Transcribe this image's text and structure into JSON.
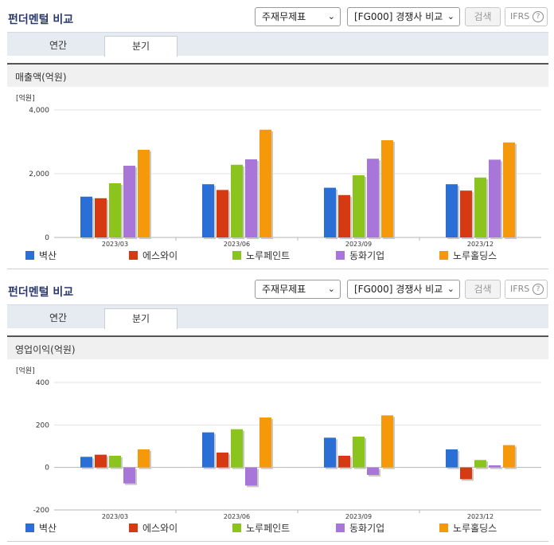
{
  "sections": [
    {
      "title": "펀더멘털 비교",
      "statement_select": "주재무제표",
      "compare_select": "[FG000] 경쟁사 비교",
      "search_label": "검색",
      "ifrs_label": "IFRS",
      "help_label": "?",
      "tabs": [
        {
          "label": "연간"
        },
        {
          "label": "분기"
        }
      ],
      "active_tab": "분기",
      "chart_header": "매출액(억원)"
    },
    {
      "title": "펀더멘털 비교",
      "statement_select": "주재무제표",
      "compare_select": "[FG000] 경쟁사 비교",
      "search_label": "검색",
      "ifrs_label": "IFRS",
      "help_label": "?",
      "tabs": [
        {
          "label": "연간"
        },
        {
          "label": "분기"
        }
      ],
      "active_tab": "분기",
      "chart_header": "영업이익(억원)"
    }
  ],
  "colors": {
    "title": "#2b3a6b",
    "tab_bar": "#e6ebf2",
    "header_bg": "#f0f0f0"
  },
  "chart_data": [
    {
      "type": "bar",
      "unit_label": "[억원]",
      "categories": [
        "2023/03",
        "2023/06",
        "2023/09",
        "2023/12"
      ],
      "ylim": [
        0,
        4000
      ],
      "yticks": [
        0,
        2000,
        4000
      ],
      "ytick_labels": [
        "0",
        "2,000",
        "4,000"
      ],
      "grid": true,
      "legend_position": "bottom",
      "series": [
        {
          "name": "벽산",
          "color": "#2b6fd6",
          "values": [
            1280,
            1670,
            1560,
            1670
          ]
        },
        {
          "name": "에스와이",
          "color": "#d63a12",
          "values": [
            1230,
            1490,
            1330,
            1470
          ]
        },
        {
          "name": "노루페인트",
          "color": "#8cc41e",
          "values": [
            1700,
            2280,
            1950,
            1880
          ]
        },
        {
          "name": "동화기업",
          "color": "#a875d8",
          "values": [
            2250,
            2450,
            2470,
            2440
          ]
        },
        {
          "name": "노루홀딩스",
          "color": "#f5980a",
          "values": [
            2750,
            3380,
            3050,
            2980
          ]
        }
      ]
    },
    {
      "type": "bar",
      "unit_label": "[억원]",
      "categories": [
        "2023/03",
        "2023/06",
        "2023/09",
        "2023/12"
      ],
      "ylim": [
        -200,
        400
      ],
      "yticks": [
        -200,
        0,
        200,
        400
      ],
      "ytick_labels": [
        "-200",
        "0",
        "200",
        "400"
      ],
      "grid": true,
      "legend_position": "bottom",
      "series": [
        {
          "name": "벽산",
          "color": "#2b6fd6",
          "values": [
            50,
            165,
            140,
            85
          ]
        },
        {
          "name": "에스와이",
          "color": "#d63a12",
          "values": [
            60,
            70,
            55,
            -55
          ]
        },
        {
          "name": "노루페인트",
          "color": "#8cc41e",
          "values": [
            55,
            180,
            145,
            35
          ]
        },
        {
          "name": "동화기업",
          "color": "#a875d8",
          "values": [
            -75,
            -85,
            -35,
            10
          ]
        },
        {
          "name": "노루홀딩스",
          "color": "#f5980a",
          "values": [
            85,
            235,
            245,
            105
          ]
        }
      ]
    }
  ]
}
